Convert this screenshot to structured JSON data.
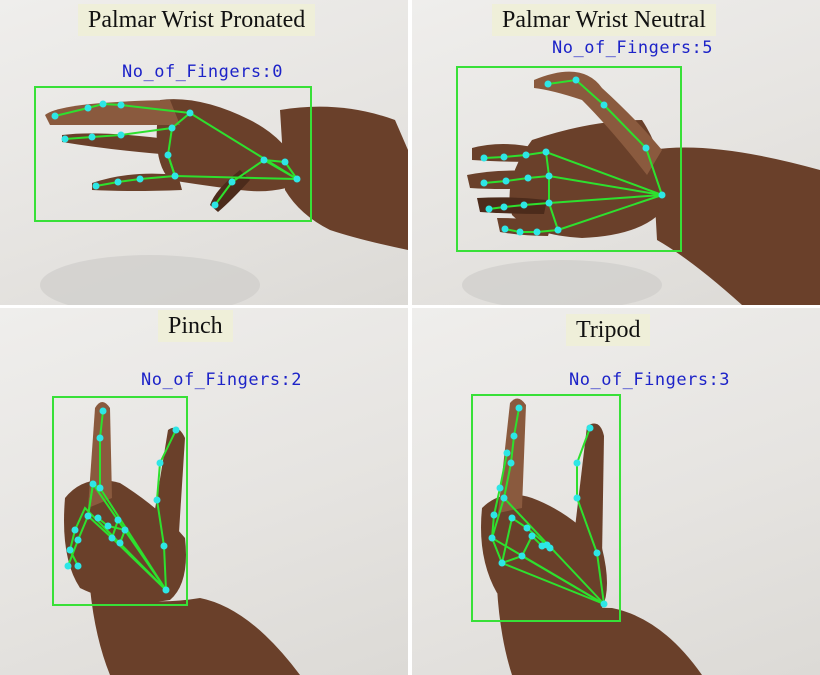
{
  "panels": [
    {
      "title": "Palmar Wrist Pronated",
      "finger_count_label": "No_of_Fingers:0"
    },
    {
      "title": "Palmar Wrist Neutral",
      "finger_count_label": "No_of_Fingers:5"
    },
    {
      "title": "Pinch",
      "finger_count_label": "No_of_Fingers:2"
    },
    {
      "title": "Tripod",
      "finger_count_label": "No_of_Fingers:3"
    }
  ],
  "colors": {
    "bounding_box": "#38e038",
    "skeleton_line": "#2ee02e",
    "landmark_point": "#2ee6e6",
    "count_text": "#1d23c8",
    "title_background": "#efefd9"
  }
}
